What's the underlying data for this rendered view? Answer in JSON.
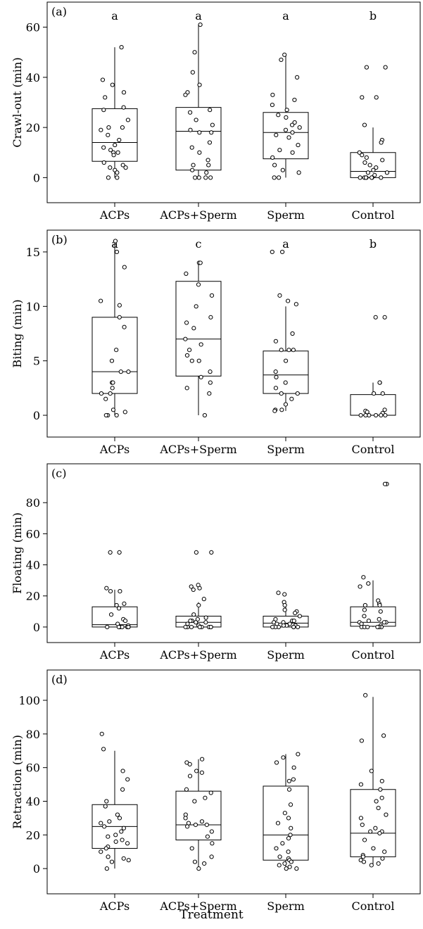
{
  "xlabel": "Treatment",
  "chart_data": [
    {
      "type": "box",
      "panel_label": "(a)",
      "ylabel": "Crawl-out (min)",
      "ylim": [
        -10,
        70
      ],
      "yticks": [
        0,
        20,
        40,
        60
      ],
      "categories": [
        "ACPs",
        "ACPs+Sperm",
        "Sperm",
        "Control"
      ],
      "letters": [
        "a",
        "a",
        "a",
        "b"
      ],
      "boxes": [
        {
          "whisker_low": 0,
          "q1": 6.5,
          "median": 14,
          "q3": 27.5,
          "whisker_high": 52
        },
        {
          "whisker_low": 0,
          "q1": 3,
          "median": 18.5,
          "q3": 28,
          "whisker_high": 61
        },
        {
          "whisker_low": 0,
          "q1": 7.5,
          "median": 18,
          "q3": 26,
          "whisker_high": 49
        },
        {
          "whisker_low": 0,
          "q1": 0,
          "median": 2.5,
          "q3": 10,
          "whisker_high": 20
        }
      ],
      "points": [
        [
          52,
          39,
          37,
          34,
          32,
          28,
          27,
          23,
          20,
          20,
          19,
          17,
          15,
          13,
          12,
          11,
          10,
          10,
          9,
          6,
          5,
          4,
          4,
          3,
          2,
          0,
          0
        ],
        [
          61,
          50,
          42,
          37,
          34,
          33,
          27,
          26,
          23,
          21,
          19,
          18,
          18,
          14,
          12,
          10,
          7,
          5,
          5,
          3,
          2,
          0,
          0,
          0,
          0
        ],
        [
          49,
          47,
          40,
          33,
          31,
          29,
          27,
          25,
          24,
          22,
          21,
          20,
          19,
          18,
          17,
          16,
          13,
          11,
          10,
          8,
          5,
          3,
          2,
          0,
          0
        ],
        [
          44,
          44,
          32,
          32,
          21,
          15,
          14,
          10,
          9,
          8,
          7,
          6,
          5,
          4,
          3,
          2,
          2,
          1,
          0,
          0,
          0,
          0,
          0,
          0,
          0
        ]
      ]
    },
    {
      "type": "box",
      "panel_label": "(b)",
      "ylabel": "Biting (min)",
      "ylim": [
        -2,
        17
      ],
      "yticks": [
        0,
        5,
        10,
        15
      ],
      "categories": [
        "ACPs",
        "ACPs+Sperm",
        "Sperm",
        "Control"
      ],
      "letters": [
        "a",
        "c",
        "a",
        "b"
      ],
      "boxes": [
        {
          "whisker_low": 0,
          "q1": 2,
          "median": 4,
          "q3": 9,
          "whisker_high": 16
        },
        {
          "whisker_low": 0,
          "q1": 3.6,
          "median": 7,
          "q3": 12.3,
          "whisker_high": 14
        },
        {
          "whisker_low": 0.4,
          "q1": 2,
          "median": 3.7,
          "q3": 5.9,
          "whisker_high": 10
        },
        {
          "whisker_low": 0,
          "q1": 0,
          "median": 0,
          "q3": 1.9,
          "whisker_high": 3
        }
      ],
      "points": [
        [
          16,
          15,
          13.6,
          10.5,
          10.1,
          9,
          8.1,
          6,
          5,
          4,
          4,
          3,
          3,
          2.5,
          2,
          2,
          1.5,
          0.5,
          0.3,
          0,
          0,
          0
        ],
        [
          14,
          14,
          13,
          12,
          11,
          10,
          9,
          8.5,
          8,
          7,
          6.5,
          6,
          5.5,
          5,
          5,
          4,
          3.5,
          3,
          2.5,
          2,
          0
        ],
        [
          15,
          15,
          11,
          10.5,
          10.2,
          7.5,
          6.8,
          6,
          6,
          6,
          5,
          4,
          3.5,
          3,
          2.5,
          2,
          2,
          1.5,
          1,
          0.5,
          0.5,
          0.4
        ],
        [
          9,
          9,
          3,
          3,
          2,
          2,
          0.5,
          0.4,
          0.3,
          0.2,
          0,
          0,
          0,
          0,
          0,
          0
        ]
      ]
    },
    {
      "type": "box",
      "panel_label": "(c)",
      "ylabel": "Floating (min)",
      "ylim": [
        -10,
        105
      ],
      "yticks": [
        0,
        20,
        40,
        60,
        80
      ],
      "categories": [
        "ACPs",
        "ACPs+Sperm",
        "Sperm",
        "Control"
      ],
      "letters": [],
      "boxes": [
        {
          "whisker_low": 0,
          "q1": 0,
          "median": 1.5,
          "q3": 13,
          "whisker_high": 24
        },
        {
          "whisker_low": 0,
          "q1": 0,
          "median": 3,
          "q3": 7,
          "whisker_high": 16
        },
        {
          "whisker_low": 0,
          "q1": 0,
          "median": 2.5,
          "q3": 7,
          "whisker_high": 15
        },
        {
          "whisker_low": 0,
          "q1": 0.5,
          "median": 3,
          "q3": 13,
          "whisker_high": 30
        }
      ],
      "points": [
        [
          48,
          48,
          25,
          23,
          23,
          15,
          14,
          12,
          8,
          5,
          4,
          2,
          1,
          0,
          0,
          0,
          0,
          0,
          0,
          0
        ],
        [
          48,
          48,
          27,
          26,
          25,
          24,
          18,
          14,
          8,
          6,
          5,
          4,
          4,
          3,
          3,
          2,
          1,
          0,
          0,
          0,
          0,
          0,
          0,
          0,
          0
        ],
        [
          22,
          21,
          16,
          14,
          11,
          10,
          9,
          7,
          5,
          4,
          4,
          3,
          3,
          2,
          2,
          1,
          1,
          1,
          0,
          0,
          0,
          0,
          0,
          0
        ],
        [
          92,
          92,
          32,
          28,
          26,
          17,
          15,
          14,
          14,
          11,
          10,
          7,
          5,
          4,
          3,
          3,
          3,
          2,
          1,
          0,
          0,
          0,
          0,
          0,
          0
        ]
      ]
    },
    {
      "type": "box",
      "panel_label": "(d)",
      "ylabel": "Retraction (min)",
      "ylim": [
        -15,
        118
      ],
      "yticks": [
        0,
        20,
        40,
        60,
        80,
        100
      ],
      "categories": [
        "ACPs",
        "ACPs+Sperm",
        "Sperm",
        "Control"
      ],
      "letters": [],
      "boxes": [
        {
          "whisker_low": 0,
          "q1": 12,
          "median": 25,
          "q3": 38,
          "whisker_high": 70
        },
        {
          "whisker_low": 0,
          "q1": 17,
          "median": 26,
          "q3": 46,
          "whisker_high": 65
        },
        {
          "whisker_low": 0,
          "q1": 5,
          "median": 20,
          "q3": 49,
          "whisker_high": 68
        },
        {
          "whisker_low": 2,
          "q1": 7,
          "median": 21,
          "q3": 47,
          "whisker_high": 102
        }
      ],
      "points": [
        [
          80,
          71,
          58,
          53,
          47,
          40,
          37,
          32,
          30,
          28,
          27,
          25,
          24,
          22,
          20,
          19,
          17,
          16,
          15,
          13,
          12,
          10,
          7,
          6,
          5,
          4,
          0
        ],
        [
          65,
          63,
          62,
          58,
          57,
          55,
          47,
          45,
          42,
          40,
          32,
          30,
          28,
          27,
          26,
          26,
          25,
          22,
          19,
          15,
          12,
          7,
          4,
          3,
          0
        ],
        [
          68,
          66,
          63,
          60,
          53,
          52,
          47,
          38,
          33,
          30,
          27,
          24,
          20,
          18,
          15,
          12,
          10,
          7,
          6,
          5,
          4,
          3,
          2,
          1,
          0,
          0
        ],
        [
          103,
          79,
          76,
          58,
          52,
          50,
          47,
          42,
          40,
          36,
          32,
          30,
          26,
          24,
          22,
          22,
          21,
          17,
          12,
          10,
          8,
          7,
          6,
          5,
          4,
          3,
          2
        ]
      ]
    }
  ]
}
